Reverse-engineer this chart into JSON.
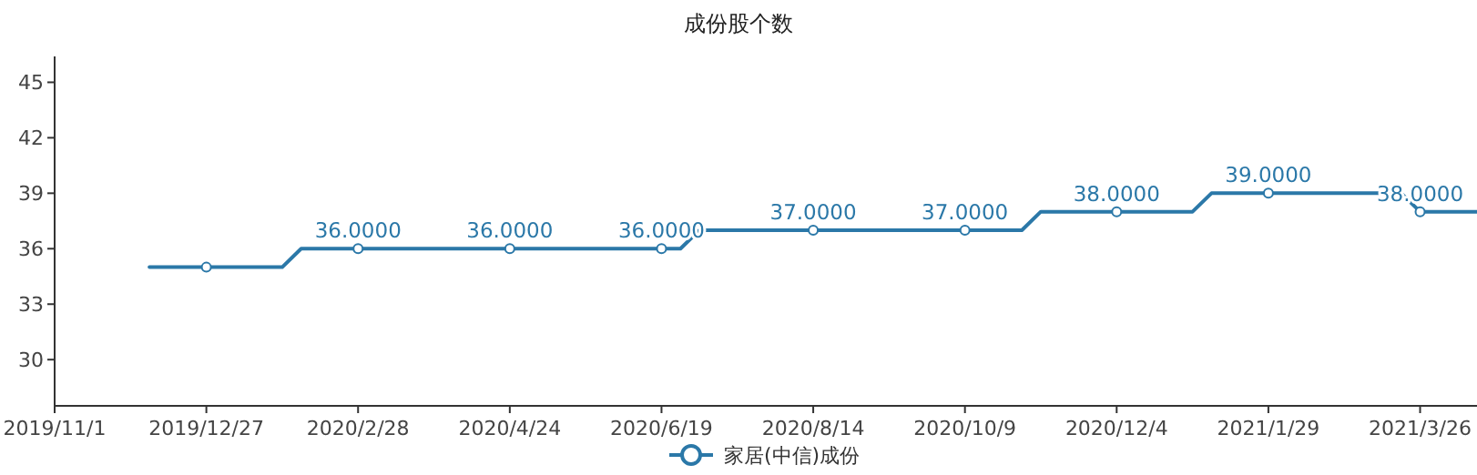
{
  "chart_data": {
    "type": "line",
    "title": "成份股个数",
    "categories": [
      "2019/11/1",
      null,
      null,
      null,
      null,
      null,
      null,
      null,
      "2019/12/27",
      null,
      null,
      null,
      null,
      null,
      null,
      null,
      "2020/2/28",
      null,
      null,
      null,
      null,
      null,
      null,
      null,
      "2020/4/24",
      null,
      null,
      null,
      null,
      null,
      null,
      null,
      "2020/6/19",
      null,
      null,
      null,
      null,
      null,
      null,
      null,
      "2020/8/14",
      null,
      null,
      null,
      null,
      null,
      null,
      null,
      "2020/10/9",
      null,
      null,
      null,
      null,
      null,
      null,
      null,
      "2020/12/4",
      null,
      null,
      null,
      null,
      null,
      null,
      null,
      "2021/1/29",
      null,
      null,
      null,
      null,
      null,
      null,
      null,
      "2021/3/26",
      null,
      null,
      null
    ],
    "series": [
      {
        "name": "家居(中信)成份",
        "color": "#2b78a8",
        "values": [
          null,
          null,
          null,
          null,
          null,
          35,
          35,
          35,
          35,
          35,
          35,
          35,
          35,
          36,
          36,
          36,
          36,
          36,
          36,
          36,
          36,
          36,
          36,
          36,
          36,
          36,
          36,
          36,
          36,
          36,
          36,
          36,
          36,
          36,
          37,
          37,
          37,
          37,
          37,
          37,
          37,
          37,
          37,
          37,
          37,
          37,
          37,
          37,
          37,
          37,
          37,
          37,
          38,
          38,
          38,
          38,
          38,
          38,
          38,
          38,
          38,
          39,
          39,
          39,
          39,
          39,
          39,
          39,
          39,
          39,
          39,
          39,
          38,
          38,
          38,
          38
        ],
        "value_labels": [
          null,
          null,
          null,
          null,
          null,
          null,
          null,
          null,
          null,
          null,
          null,
          null,
          null,
          null,
          null,
          null,
          "36.0000",
          null,
          null,
          null,
          null,
          null,
          null,
          null,
          "36.0000",
          null,
          null,
          null,
          null,
          null,
          null,
          null,
          "36.0000",
          null,
          null,
          null,
          null,
          null,
          null,
          null,
          "37.0000",
          null,
          null,
          null,
          null,
          null,
          null,
          null,
          "37.0000",
          null,
          null,
          null,
          null,
          null,
          null,
          null,
          "38.0000",
          null,
          null,
          null,
          null,
          null,
          null,
          null,
          "39.0000",
          null,
          null,
          null,
          null,
          null,
          null,
          null,
          "38.0000",
          null,
          null,
          null
        ]
      },
      {
        "type": "scatter",
        "color": "#2b78a8",
        "marker": "circle",
        "x": [
          "2019/12/27",
          "2020/2/28",
          "2020/4/24",
          "2020/6/19",
          "2020/8/14",
          "2020/10/9",
          "2020/12/4",
          "2021/1/29",
          "2021/3/26"
        ],
        "values": [
          35,
          36,
          36,
          36,
          37,
          37,
          38,
          39,
          38
        ]
      }
    ],
    "ylim": [
      27.5,
      46.4
    ],
    "yticks": [
      30,
      33,
      36,
      39,
      42,
      45
    ],
    "legend": "bottom",
    "grid": false
  }
}
